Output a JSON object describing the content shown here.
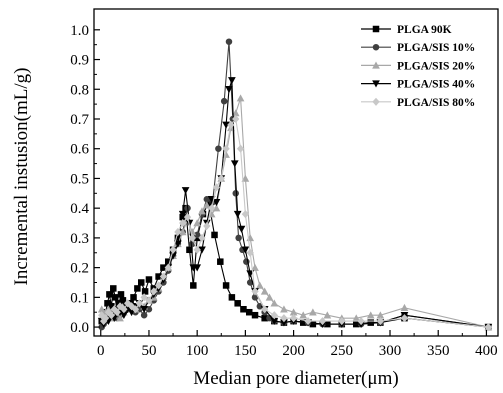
{
  "chart_data": {
    "type": "line",
    "title": "",
    "xlabel": "Median pore diameter(μm)",
    "ylabel": "Incremental instusion(mL/g)",
    "xlim": [
      -7,
      412
    ],
    "ylim": [
      -0.03,
      1.07
    ],
    "xticks": [
      0,
      50,
      100,
      150,
      200,
      250,
      300,
      350,
      400
    ],
    "yticks": [
      0.0,
      0.1,
      0.2,
      0.3,
      0.4,
      0.5,
      0.6,
      0.7,
      0.8,
      0.9,
      1.0
    ],
    "ytick_labels": [
      "0.0",
      "0.1",
      "0.2",
      "0.3",
      "0.4",
      "0.5",
      "0.6",
      "0.7",
      "0.8",
      "0.9",
      "1.0"
    ],
    "grid": false,
    "legend_position": "top-right",
    "series": [
      {
        "name": "PLGA 90K",
        "color": "#000000",
        "marker": "square",
        "x": [
          1,
          3,
          5,
          7,
          9,
          11,
          13,
          15,
          17,
          19,
          21,
          23,
          25,
          28,
          31,
          34,
          38,
          42,
          46,
          50,
          55,
          60,
          65,
          70,
          75,
          80,
          85,
          88,
          92,
          96,
          100,
          106,
          112,
          118,
          124,
          130,
          136,
          142,
          148,
          154,
          160,
          170,
          180,
          190,
          200,
          210,
          220,
          235,
          250,
          265,
          280,
          290,
          315,
          402
        ],
        "y": [
          0.02,
          0.03,
          0.05,
          0.08,
          0.11,
          0.07,
          0.13,
          0.1,
          0.05,
          0.08,
          0.11,
          0.09,
          0.06,
          0.07,
          0.08,
          0.1,
          0.13,
          0.15,
          0.12,
          0.16,
          0.13,
          0.17,
          0.2,
          0.22,
          0.26,
          0.3,
          0.37,
          0.4,
          0.26,
          0.14,
          0.3,
          0.38,
          0.42,
          0.31,
          0.22,
          0.14,
          0.1,
          0.08,
          0.06,
          0.05,
          0.04,
          0.03,
          0.02,
          0.015,
          0.02,
          0.015,
          0.01,
          0.01,
          0.01,
          0.01,
          0.015,
          0.015,
          0.03,
          0.0
        ]
      },
      {
        "name": "PLGA/SIS 10%",
        "color": "#404040",
        "marker": "circle",
        "x": [
          1,
          3,
          5,
          8,
          11,
          14,
          17,
          20,
          24,
          28,
          32,
          36,
          40,
          45,
          50,
          55,
          60,
          65,
          70,
          75,
          80,
          85,
          90,
          95,
          100,
          105,
          110,
          116,
          122,
          128,
          133,
          137,
          140,
          143,
          147,
          151,
          155,
          160,
          165,
          170,
          175,
          180,
          190,
          200,
          215,
          230,
          250,
          270,
          290,
          315,
          402
        ],
        "y": [
          0.0,
          0.01,
          0.02,
          0.03,
          0.04,
          0.05,
          0.03,
          0.04,
          0.05,
          0.06,
          0.07,
          0.05,
          0.06,
          0.04,
          0.06,
          0.09,
          0.12,
          0.15,
          0.19,
          0.24,
          0.28,
          0.32,
          0.4,
          0.28,
          0.31,
          0.38,
          0.43,
          0.42,
          0.6,
          0.76,
          0.96,
          0.7,
          0.45,
          0.3,
          0.26,
          0.22,
          0.15,
          0.1,
          0.07,
          0.05,
          0.03,
          0.02,
          0.015,
          0.02,
          0.015,
          0.01,
          0.01,
          0.01,
          0.015,
          0.04,
          0.0
        ]
      },
      {
        "name": "PLGA/SIS 20%",
        "color": "#a8a8a8",
        "marker": "triangle-up",
        "x": [
          1,
          3,
          5,
          8,
          11,
          14,
          17,
          20,
          24,
          28,
          32,
          36,
          40,
          45,
          50,
          55,
          60,
          65,
          70,
          75,
          80,
          85,
          90,
          95,
          100,
          105,
          110,
          115,
          120,
          125,
          130,
          135,
          140,
          145,
          150,
          155,
          160,
          165,
          170,
          175,
          180,
          190,
          200,
          210,
          220,
          235,
          250,
          265,
          280,
          290,
          315,
          402
        ],
        "y": [
          0.06,
          0.04,
          0.05,
          0.06,
          0.03,
          0.04,
          0.05,
          0.03,
          0.05,
          0.06,
          0.07,
          0.06,
          0.08,
          0.07,
          0.09,
          0.1,
          0.13,
          0.17,
          0.2,
          0.24,
          0.28,
          0.32,
          0.36,
          0.32,
          0.35,
          0.39,
          0.41,
          0.38,
          0.4,
          0.5,
          0.58,
          0.67,
          0.72,
          0.77,
          0.5,
          0.3,
          0.2,
          0.14,
          0.12,
          0.1,
          0.08,
          0.06,
          0.05,
          0.04,
          0.05,
          0.04,
          0.03,
          0.03,
          0.04,
          0.04,
          0.065,
          0.0
        ]
      },
      {
        "name": "PLGA/SIS 40%",
        "color": "#000000",
        "marker": "triangle-down",
        "x": [
          1,
          3,
          5,
          8,
          11,
          14,
          17,
          20,
          24,
          28,
          32,
          36,
          40,
          45,
          50,
          55,
          60,
          65,
          70,
          75,
          80,
          85,
          88,
          92,
          96,
          100,
          105,
          110,
          115,
          120,
          125,
          130,
          133,
          136,
          139,
          142,
          146,
          150,
          155,
          160,
          170,
          180,
          190,
          200,
          215,
          230,
          250,
          270,
          290,
          315,
          402
        ],
        "y": [
          0.02,
          0.01,
          0.03,
          0.02,
          0.04,
          0.03,
          0.06,
          0.05,
          0.04,
          0.06,
          0.05,
          0.07,
          0.08,
          0.06,
          0.09,
          0.11,
          0.13,
          0.16,
          0.2,
          0.24,
          0.28,
          0.38,
          0.46,
          0.35,
          0.2,
          0.2,
          0.26,
          0.35,
          0.43,
          0.42,
          0.5,
          0.68,
          0.8,
          0.83,
          0.55,
          0.38,
          0.33,
          0.26,
          0.18,
          0.12,
          0.06,
          0.02,
          0.015,
          0.02,
          0.015,
          0.01,
          0.01,
          0.01,
          0.015,
          0.04,
          0.0
        ]
      },
      {
        "name": "PLGA/SIS 80%",
        "color": "#c8c8c8",
        "marker": "diamond",
        "x": [
          1,
          3,
          5,
          8,
          11,
          14,
          17,
          20,
          24,
          28,
          32,
          36,
          40,
          45,
          50,
          55,
          60,
          65,
          70,
          75,
          80,
          85,
          90,
          95,
          100,
          105,
          110,
          115,
          120,
          125,
          130,
          135,
          140,
          145,
          150,
          155,
          160,
          170,
          180,
          190,
          200,
          215,
          230,
          250,
          270,
          290,
          315,
          402
        ],
        "y": [
          0.04,
          0.02,
          0.03,
          0.05,
          0.04,
          0.06,
          0.05,
          0.07,
          0.06,
          0.08,
          0.07,
          0.06,
          0.08,
          0.1,
          0.09,
          0.12,
          0.14,
          0.17,
          0.2,
          0.26,
          0.32,
          0.35,
          0.37,
          0.3,
          0.26,
          0.3,
          0.34,
          0.4,
          0.47,
          0.5,
          0.6,
          0.68,
          0.7,
          0.6,
          0.38,
          0.25,
          0.12,
          0.06,
          0.04,
          0.03,
          0.03,
          0.02,
          0.02,
          0.02,
          0.02,
          0.02,
          0.03,
          0.0
        ]
      }
    ]
  }
}
